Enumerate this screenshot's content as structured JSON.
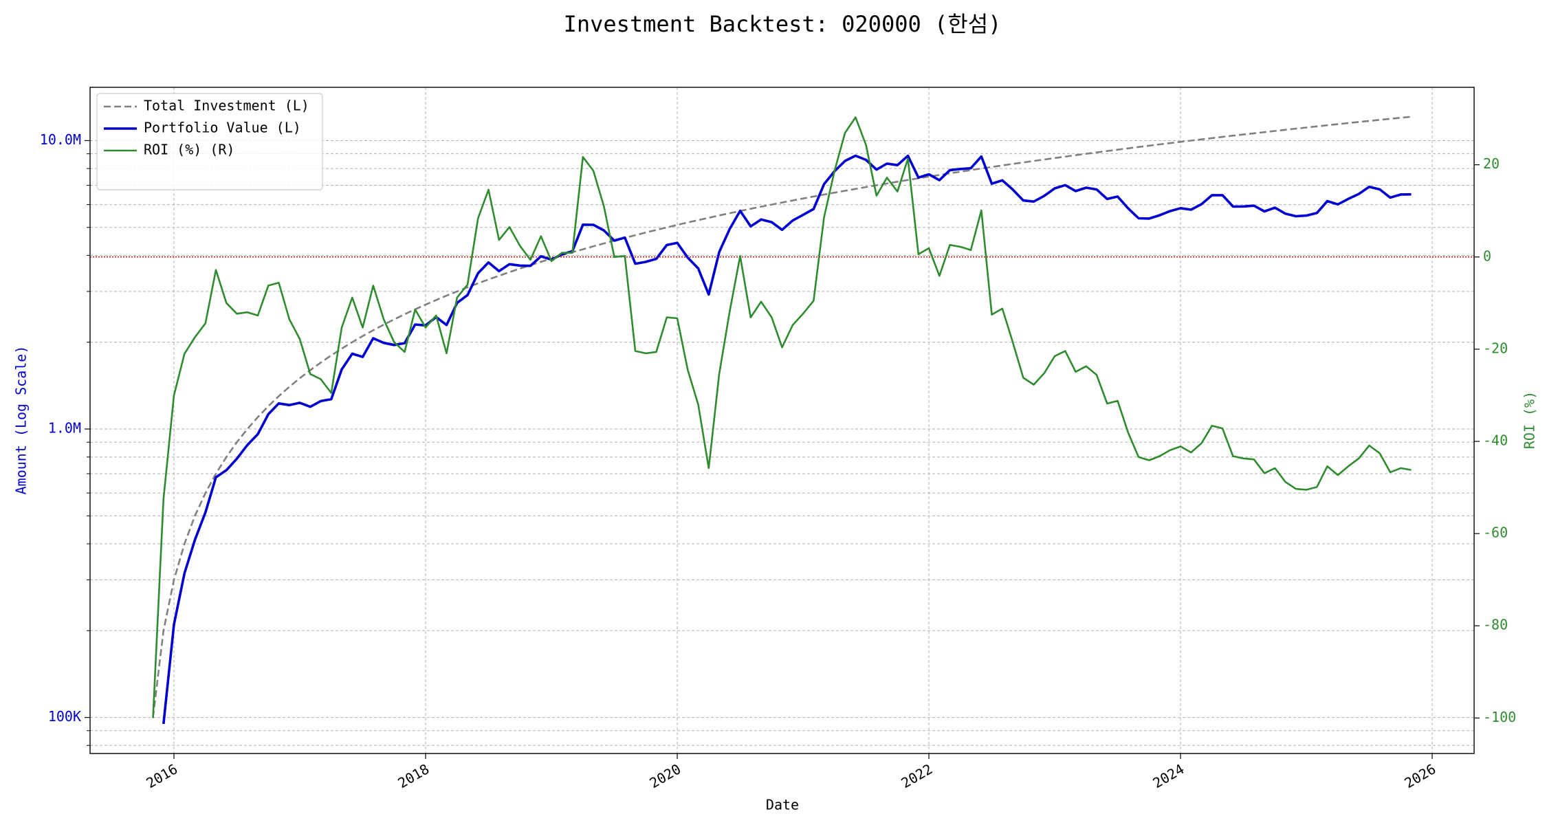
{
  "chart_data": {
    "type": "line",
    "title": "Investment Backtest: 020000 (한섬)",
    "xlabel": "Date",
    "ylabel": "Amount (Log Scale)",
    "y2label": "ROI (%)",
    "yscale": "log",
    "grid": true,
    "legend": "upper left",
    "xlim": [
      "2015-05",
      "2026-05"
    ],
    "xticks": [
      "2016",
      "2018",
      "2020",
      "2022",
      "2024",
      "2026"
    ],
    "ylim": [
      75000,
      15300000
    ],
    "yticks": [
      {
        "value": 100000,
        "label": "100K"
      },
      {
        "value": 1000000,
        "label": "1.0M"
      },
      {
        "value": 10000000,
        "label": "10.0M"
      }
    ],
    "yminorticks": [
      80000,
      90000,
      200000,
      300000,
      400000,
      500000,
      600000,
      700000,
      800000,
      900000,
      2000000,
      3000000,
      4000000,
      5000000,
      6000000,
      7000000,
      8000000,
      9000000
    ],
    "y2lim": [
      -107.7,
      36.8
    ],
    "y2ticks": [
      -100,
      -80,
      -60,
      -40,
      -20,
      0,
      20
    ],
    "hline": {
      "value": 0,
      "axis": "y2",
      "color": "#ff0000"
    },
    "x": [
      "2015-11",
      "2015-12",
      "2016-01",
      "2016-02",
      "2016-03",
      "2016-04",
      "2016-05",
      "2016-06",
      "2016-07",
      "2016-08",
      "2016-09",
      "2016-10",
      "2016-11",
      "2016-12",
      "2017-01",
      "2017-02",
      "2017-03",
      "2017-04",
      "2017-05",
      "2017-06",
      "2017-07",
      "2017-08",
      "2017-09",
      "2017-10",
      "2017-11",
      "2017-12",
      "2018-01",
      "2018-02",
      "2018-03",
      "2018-04",
      "2018-05",
      "2018-06",
      "2018-07",
      "2018-08",
      "2018-09",
      "2018-10",
      "2018-11",
      "2018-12",
      "2019-01",
      "2019-02",
      "2019-03",
      "2019-04",
      "2019-05",
      "2019-06",
      "2019-07",
      "2019-08",
      "2019-09",
      "2019-10",
      "2019-11",
      "2019-12",
      "2020-01",
      "2020-02",
      "2020-03",
      "2020-04",
      "2020-05",
      "2020-06",
      "2020-07",
      "2020-08",
      "2020-09",
      "2020-10",
      "2020-11",
      "2020-12",
      "2021-01",
      "2021-02",
      "2021-03",
      "2021-04",
      "2021-05",
      "2021-06",
      "2021-07",
      "2021-08",
      "2021-09",
      "2021-10",
      "2021-11",
      "2021-12",
      "2022-01",
      "2022-02",
      "2022-03",
      "2022-04",
      "2022-05",
      "2022-06",
      "2022-07",
      "2022-08",
      "2022-09",
      "2022-10",
      "2022-11",
      "2022-12",
      "2023-01",
      "2023-02",
      "2023-03",
      "2023-04",
      "2023-05",
      "2023-06",
      "2023-07",
      "2023-08",
      "2023-09",
      "2023-10",
      "2023-11",
      "2023-12",
      "2024-01",
      "2024-02",
      "2024-03",
      "2024-04",
      "2024-05",
      "2024-06",
      "2024-07",
      "2024-08",
      "2024-09",
      "2024-10",
      "2024-11",
      "2024-12",
      "2025-01",
      "2025-02",
      "2025-03",
      "2025-04",
      "2025-05",
      "2025-06",
      "2025-07",
      "2025-08",
      "2025-09",
      "2025-10",
      "2025-11"
    ],
    "series": [
      {
        "name": "Total Investment (L)",
        "color": "#808080",
        "dash": true,
        "axis": "y",
        "values": [
          100000,
          200000,
          300000,
          400000,
          500000,
          600000,
          700000,
          800000,
          900000,
          1000000,
          1100000,
          1200000,
          1300000,
          1400000,
          1500000,
          1600000,
          1700000,
          1800000,
          1900000,
          2000000,
          2100000,
          2200000,
          2300000,
          2400000,
          2500000,
          2600000,
          2700000,
          2800000,
          2900000,
          3000000,
          3100000,
          3200000,
          3300000,
          3400000,
          3500000,
          3600000,
          3700000,
          3800000,
          3900000,
          4000000,
          4100000,
          4200000,
          4300000,
          4400000,
          4500000,
          4600000,
          4700000,
          4800000,
          4900000,
          5000000,
          5100000,
          5200000,
          5300000,
          5400000,
          5500000,
          5600000,
          5700000,
          5800000,
          5900000,
          6000000,
          6100000,
          6200000,
          6300000,
          6400000,
          6500000,
          6600000,
          6700000,
          6800000,
          6900000,
          7000000,
          7100000,
          7200000,
          7300000,
          7400000,
          7500000,
          7600000,
          7700000,
          7800000,
          7900000,
          8000000,
          8100000,
          8200000,
          8300000,
          8400000,
          8500000,
          8600000,
          8700000,
          8800000,
          8900000,
          9000000,
          9100000,
          9200000,
          9300000,
          9400000,
          9500000,
          9600000,
          9700000,
          9800000,
          9900000,
          10000000,
          10100000,
          10200000,
          10300000,
          10400000,
          10500000,
          10600000,
          10700000,
          10800000,
          10900000,
          11000000,
          11100000,
          11200000,
          11300000,
          11400000,
          11500000,
          11600000,
          11700000,
          11800000,
          11900000,
          12000000,
          12100000
        ]
      },
      {
        "name": "Portfolio Value (L)",
        "color": "#0000d0",
        "axis": "y",
        "values": [
          0,
          95000,
          210000,
          316000,
          413000,
          514000,
          680000,
          720000,
          789000,
          880000,
          960000,
          1126000,
          1227000,
          1211000,
          1233000,
          1194000,
          1250000,
          1269000,
          1609000,
          1824000,
          1779000,
          2064000,
          1990000,
          1956000,
          1985000,
          2304000,
          2287000,
          2444000,
          2294000,
          2736000,
          2914000,
          3469000,
          3782000,
          3526000,
          3728000,
          3686000,
          3678000,
          3971000,
          3865000,
          4036000,
          4137000,
          5111000,
          5104000,
          4884000,
          4500000,
          4609000,
          3741000,
          3797000,
          3891000,
          4345000,
          4422000,
          3926000,
          3604000,
          2927000,
          4103000,
          4939000,
          5711000,
          5040000,
          5328000,
          5214000,
          4904000,
          5282000,
          5525000,
          5792000,
          7059000,
          7834000,
          8502000,
          8860000,
          8577000,
          7931000,
          8321000,
          8222000,
          8855000,
          7444000,
          7643000,
          7288000,
          7900000,
          7972000,
          8019000,
          8808000,
          7088000,
          7282000,
          6765000,
          6199000,
          6146000,
          6433000,
          6830000,
          7005000,
          6684000,
          6867000,
          6770000,
          6274000,
          6398000,
          5819000,
          5377000,
          5366000,
          5510000,
          5694000,
          5831000,
          5760000,
          6020000,
          6467000,
          6468000,
          5907000,
          5912000,
          5947000,
          5682000,
          5854000,
          5581000,
          5467000,
          5495000,
          5611000,
          6170000,
          6008000,
          6279000,
          6531000,
          6915000,
          6773000,
          6343000,
          6504000,
          6510000
        ]
      },
      {
        "name": "ROI (%) (R)",
        "color": "#2e8b2e",
        "axis": "y2",
        "values": [
          -100,
          -52.5,
          -30,
          -21,
          -17.4,
          -14.4,
          -2.8,
          -10,
          -12.3,
          -12,
          -12.7,
          -6.2,
          -5.6,
          -13.5,
          -17.8,
          -25.4,
          -26.5,
          -29.5,
          -15.3,
          -8.8,
          -15.3,
          -6.2,
          -13.5,
          -18.5,
          -20.6,
          -11.4,
          -15.3,
          -12.7,
          -20.9,
          -8.8,
          -6,
          8.4,
          14.6,
          3.7,
          6.5,
          2.4,
          -0.6,
          4.5,
          -0.9,
          0.9,
          0.9,
          21.7,
          18.7,
          11,
          0,
          0.2,
          -20.4,
          -20.9,
          -20.6,
          -13.1,
          -13.3,
          -24.5,
          -32,
          -45.8,
          -25.4,
          -11.8,
          0.2,
          -13.1,
          -9.7,
          -13.1,
          -19.6,
          -14.8,
          -12.3,
          -9.5,
          8.6,
          18.7,
          26.9,
          30.3,
          24.3,
          13.3,
          17.2,
          14.2,
          21.3,
          0.6,
          1.9,
          -4.1,
          2.6,
          2.2,
          1.5,
          10.1,
          -12.5,
          -11.2,
          -18.5,
          -26.2,
          -27.7,
          -25.2,
          -21.5,
          -20.4,
          -24.9,
          -23.7,
          -25.6,
          -31.8,
          -31.2,
          -38.1,
          -43.4,
          -44.1,
          -43.2,
          -41.9,
          -41.1,
          -42.4,
          -40.4,
          -36.6,
          -37.2,
          -43.2,
          -43.7,
          -43.9,
          -46.9,
          -45.8,
          -48.8,
          -50.3,
          -50.5,
          -49.9,
          -45.4,
          -47.3,
          -45.4,
          -43.7,
          -40.9,
          -42.6,
          -46.7,
          -45.8,
          -46.2
        ]
      }
    ]
  }
}
